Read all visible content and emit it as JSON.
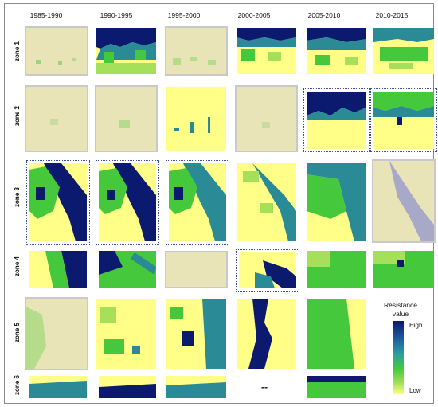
{
  "columns": [
    "1985-1990",
    "1990-1995",
    "1995-2000",
    "2000-2005",
    "2005-2010",
    "2010-2015"
  ],
  "rows": [
    "zone 1",
    "zone 2",
    "zone 3",
    "zone 4",
    "zone 5",
    "zone 6"
  ],
  "no_data_mark": "--",
  "legend": {
    "title": "Resistance value",
    "high": "High",
    "low": "Low"
  },
  "colors": {
    "beige": "#e8e4b8",
    "yellow": "#ffff88",
    "green": "#46c83c",
    "lightgreen": "#a6e05a",
    "teal": "#2a8a96",
    "navy": "#0b1a6e",
    "lavender": "#a8a8c8"
  }
}
